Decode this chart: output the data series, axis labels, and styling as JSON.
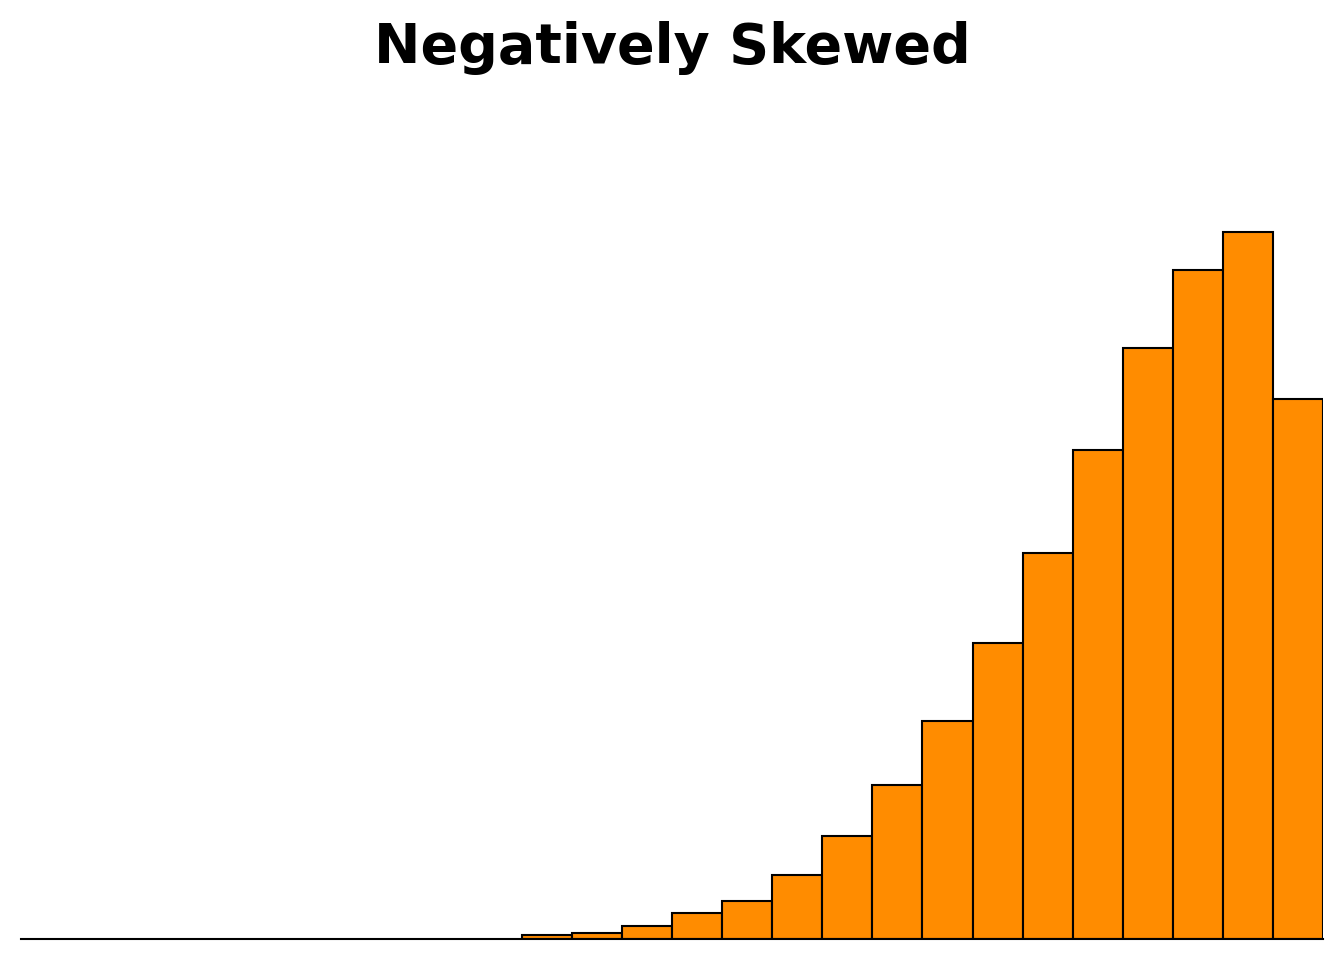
{
  "title": "Negatively Skewed",
  "title_fontsize": 40,
  "title_fontweight": "bold",
  "bar_color": "#FF8C00",
  "bar_edgecolor": "#000000",
  "bar_linewidth": 1.5,
  "background_color": "#FFFFFF",
  "values": [
    0.3,
    0.5,
    1,
    2,
    3,
    5,
    8,
    12,
    17,
    23,
    30,
    38,
    46,
    52,
    55,
    42
  ],
  "n_total_bins": 26,
  "figsize": [
    13.44,
    9.6
  ],
  "dpi": 100
}
